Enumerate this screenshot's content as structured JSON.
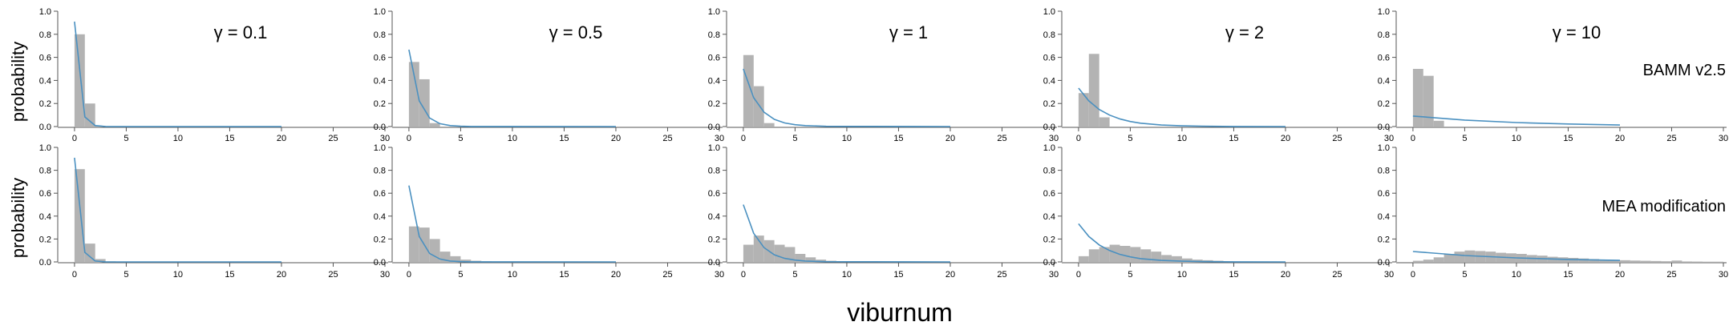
{
  "figure": {
    "xlabel": "viburnum",
    "ylabel": "probability",
    "gamma_labels": [
      "γ = 0.1",
      "γ = 0.5",
      "γ = 1",
      "γ = 2",
      "γ = 10"
    ],
    "row_labels": [
      "BAMM v2.5",
      "MEA modification"
    ],
    "xticks": [
      "0",
      "5",
      "10",
      "15",
      "20",
      "25",
      "30"
    ],
    "yticks": [
      "0.0",
      "0.2",
      "0.4",
      "0.6",
      "0.8",
      "1.0"
    ],
    "colors": {
      "bar": "#b3b3b3",
      "line": "#4a90c0",
      "axis": "#555555"
    }
  },
  "chart_data": {
    "type": "bar",
    "xlim": [
      -1,
      30
    ],
    "ylim": [
      0,
      1.0
    ],
    "grid": false,
    "layout": "2 rows x 5 columns of histogram panels with a fitted curve",
    "panels": [
      {
        "row": 0,
        "col": 0,
        "gamma": 0.1,
        "bars": [
          {
            "x": 0,
            "p": 0.8
          },
          {
            "x": 1,
            "p": 0.2
          },
          {
            "x": 2,
            "p": 0.005
          }
        ],
        "curve": [
          {
            "x": 0,
            "p": 0.91
          },
          {
            "x": 1,
            "p": 0.083
          },
          {
            "x": 2,
            "p": 0.008
          },
          {
            "x": 3,
            "p": 0.001
          },
          {
            "x": 4,
            "p": 0.0001
          },
          {
            "x": 20,
            "p": 0.0
          }
        ]
      },
      {
        "row": 0,
        "col": 1,
        "gamma": 0.5,
        "bars": [
          {
            "x": 0,
            "p": 0.56
          },
          {
            "x": 1,
            "p": 0.41
          },
          {
            "x": 2,
            "p": 0.03
          }
        ],
        "curve": [
          {
            "x": 0,
            "p": 0.667
          },
          {
            "x": 1,
            "p": 0.222
          },
          {
            "x": 2,
            "p": 0.074
          },
          {
            "x": 3,
            "p": 0.025
          },
          {
            "x": 4,
            "p": 0.008
          },
          {
            "x": 5,
            "p": 0.003
          },
          {
            "x": 6,
            "p": 0.001
          },
          {
            "x": 20,
            "p": 0.0
          }
        ]
      },
      {
        "row": 0,
        "col": 2,
        "gamma": 1,
        "bars": [
          {
            "x": 0,
            "p": 0.62
          },
          {
            "x": 1,
            "p": 0.35
          },
          {
            "x": 2,
            "p": 0.03
          }
        ],
        "curve": [
          {
            "x": 0,
            "p": 0.5
          },
          {
            "x": 1,
            "p": 0.25
          },
          {
            "x": 2,
            "p": 0.125
          },
          {
            "x": 3,
            "p": 0.0625
          },
          {
            "x": 4,
            "p": 0.031
          },
          {
            "x": 5,
            "p": 0.016
          },
          {
            "x": 6,
            "p": 0.008
          },
          {
            "x": 8,
            "p": 0.002
          },
          {
            "x": 20,
            "p": 0.0
          }
        ]
      },
      {
        "row": 0,
        "col": 3,
        "gamma": 2,
        "bars": [
          {
            "x": 0,
            "p": 0.29
          },
          {
            "x": 1,
            "p": 0.63
          },
          {
            "x": 2,
            "p": 0.08
          }
        ],
        "curve": [
          {
            "x": 0,
            "p": 0.333
          },
          {
            "x": 1,
            "p": 0.222
          },
          {
            "x": 2,
            "p": 0.148
          },
          {
            "x": 3,
            "p": 0.099
          },
          {
            "x": 4,
            "p": 0.066
          },
          {
            "x": 5,
            "p": 0.044
          },
          {
            "x": 6,
            "p": 0.029
          },
          {
            "x": 8,
            "p": 0.013
          },
          {
            "x": 10,
            "p": 0.006
          },
          {
            "x": 12,
            "p": 0.003
          },
          {
            "x": 15,
            "p": 0.001
          },
          {
            "x": 20,
            "p": 0.0
          }
        ]
      },
      {
        "row": 0,
        "col": 4,
        "gamma": 10,
        "bars": [
          {
            "x": 0,
            "p": 0.5
          },
          {
            "x": 1,
            "p": 0.44
          },
          {
            "x": 2,
            "p": 0.05
          }
        ],
        "curve": [
          {
            "x": 0,
            "p": 0.091
          },
          {
            "x": 5,
            "p": 0.056
          },
          {
            "x": 10,
            "p": 0.035
          },
          {
            "x": 15,
            "p": 0.022
          },
          {
            "x": 20,
            "p": 0.013
          }
        ]
      },
      {
        "row": 1,
        "col": 0,
        "gamma": 0.1,
        "bars": [
          {
            "x": 0,
            "p": 0.81
          },
          {
            "x": 1,
            "p": 0.16
          },
          {
            "x": 2,
            "p": 0.025
          },
          {
            "x": 3,
            "p": 0.005
          }
        ],
        "curve": [
          {
            "x": 0,
            "p": 0.91
          },
          {
            "x": 1,
            "p": 0.083
          },
          {
            "x": 2,
            "p": 0.008
          },
          {
            "x": 3,
            "p": 0.001
          },
          {
            "x": 4,
            "p": 0.0001
          },
          {
            "x": 20,
            "p": 0.0
          }
        ]
      },
      {
        "row": 1,
        "col": 1,
        "gamma": 0.5,
        "bars": [
          {
            "x": 0,
            "p": 0.31
          },
          {
            "x": 1,
            "p": 0.3
          },
          {
            "x": 2,
            "p": 0.2
          },
          {
            "x": 3,
            "p": 0.09
          },
          {
            "x": 4,
            "p": 0.05
          },
          {
            "x": 5,
            "p": 0.02
          },
          {
            "x": 6,
            "p": 0.01
          },
          {
            "x": 7,
            "p": 0.005
          }
        ],
        "curve": [
          {
            "x": 0,
            "p": 0.667
          },
          {
            "x": 1,
            "p": 0.222
          },
          {
            "x": 2,
            "p": 0.074
          },
          {
            "x": 3,
            "p": 0.025
          },
          {
            "x": 4,
            "p": 0.008
          },
          {
            "x": 5,
            "p": 0.003
          },
          {
            "x": 6,
            "p": 0.001
          },
          {
            "x": 20,
            "p": 0.0
          }
        ]
      },
      {
        "row": 1,
        "col": 2,
        "gamma": 1,
        "bars": [
          {
            "x": 0,
            "p": 0.15
          },
          {
            "x": 1,
            "p": 0.23
          },
          {
            "x": 2,
            "p": 0.19
          },
          {
            "x": 3,
            "p": 0.15
          },
          {
            "x": 4,
            "p": 0.13
          },
          {
            "x": 5,
            "p": 0.07
          },
          {
            "x": 6,
            "p": 0.04
          },
          {
            "x": 7,
            "p": 0.02
          },
          {
            "x": 8,
            "p": 0.01
          },
          {
            "x": 9,
            "p": 0.005
          }
        ],
        "curve": [
          {
            "x": 0,
            "p": 0.5
          },
          {
            "x": 1,
            "p": 0.25
          },
          {
            "x": 2,
            "p": 0.125
          },
          {
            "x": 3,
            "p": 0.0625
          },
          {
            "x": 4,
            "p": 0.031
          },
          {
            "x": 5,
            "p": 0.016
          },
          {
            "x": 6,
            "p": 0.008
          },
          {
            "x": 8,
            "p": 0.002
          },
          {
            "x": 20,
            "p": 0.0
          }
        ]
      },
      {
        "row": 1,
        "col": 3,
        "gamma": 2,
        "bars": [
          {
            "x": 0,
            "p": 0.05
          },
          {
            "x": 1,
            "p": 0.11
          },
          {
            "x": 2,
            "p": 0.13
          },
          {
            "x": 3,
            "p": 0.15
          },
          {
            "x": 4,
            "p": 0.14
          },
          {
            "x": 5,
            "p": 0.13
          },
          {
            "x": 6,
            "p": 0.11
          },
          {
            "x": 7,
            "p": 0.09
          },
          {
            "x": 8,
            "p": 0.06
          },
          {
            "x": 9,
            "p": 0.05
          },
          {
            "x": 10,
            "p": 0.03
          },
          {
            "x": 11,
            "p": 0.02
          },
          {
            "x": 12,
            "p": 0.015
          },
          {
            "x": 13,
            "p": 0.01
          },
          {
            "x": 14,
            "p": 0.005
          },
          {
            "x": 15,
            "p": 0.003
          }
        ],
        "curve": [
          {
            "x": 0,
            "p": 0.333
          },
          {
            "x": 1,
            "p": 0.222
          },
          {
            "x": 2,
            "p": 0.148
          },
          {
            "x": 3,
            "p": 0.099
          },
          {
            "x": 4,
            "p": 0.066
          },
          {
            "x": 5,
            "p": 0.044
          },
          {
            "x": 6,
            "p": 0.029
          },
          {
            "x": 8,
            "p": 0.013
          },
          {
            "x": 10,
            "p": 0.006
          },
          {
            "x": 12,
            "p": 0.003
          },
          {
            "x": 15,
            "p": 0.001
          },
          {
            "x": 20,
            "p": 0.0
          }
        ]
      },
      {
        "row": 1,
        "col": 4,
        "gamma": 10,
        "bars": [
          {
            "x": 0,
            "p": 0.01
          },
          {
            "x": 1,
            "p": 0.02
          },
          {
            "x": 2,
            "p": 0.04
          },
          {
            "x": 3,
            "p": 0.07
          },
          {
            "x": 4,
            "p": 0.09
          },
          {
            "x": 5,
            "p": 0.1
          },
          {
            "x": 6,
            "p": 0.095
          },
          {
            "x": 7,
            "p": 0.09
          },
          {
            "x": 8,
            "p": 0.08
          },
          {
            "x": 9,
            "p": 0.075
          },
          {
            "x": 10,
            "p": 0.07
          },
          {
            "x": 11,
            "p": 0.06
          },
          {
            "x": 12,
            "p": 0.055
          },
          {
            "x": 13,
            "p": 0.045
          },
          {
            "x": 14,
            "p": 0.04
          },
          {
            "x": 15,
            "p": 0.035
          },
          {
            "x": 16,
            "p": 0.03
          },
          {
            "x": 17,
            "p": 0.025
          },
          {
            "x": 18,
            "p": 0.02
          },
          {
            "x": 19,
            "p": 0.018
          },
          {
            "x": 20,
            "p": 0.015
          },
          {
            "x": 21,
            "p": 0.012
          },
          {
            "x": 22,
            "p": 0.01
          },
          {
            "x": 23,
            "p": 0.008
          },
          {
            "x": 24,
            "p": 0.006
          },
          {
            "x": 25,
            "p": 0.012
          },
          {
            "x": 26,
            "p": 0.004
          },
          {
            "x": 27,
            "p": 0.003
          },
          {
            "x": 28,
            "p": 0.002
          },
          {
            "x": 29,
            "p": 0.002
          }
        ],
        "curve": [
          {
            "x": 0,
            "p": 0.091
          },
          {
            "x": 5,
            "p": 0.056
          },
          {
            "x": 10,
            "p": 0.035
          },
          {
            "x": 15,
            "p": 0.022
          },
          {
            "x": 20,
            "p": 0.013
          }
        ]
      }
    ]
  }
}
